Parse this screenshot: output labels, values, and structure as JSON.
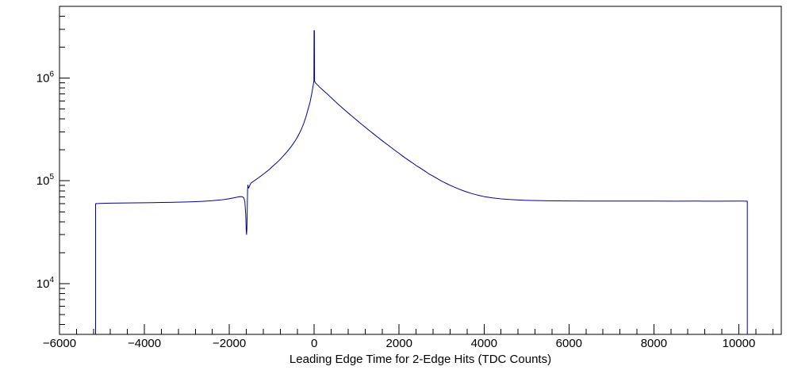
{
  "chart_data": {
    "type": "line",
    "title": "",
    "xlabel": "Leading Edge Time for 2-Edge Hits (TDC Counts)",
    "ylabel": "",
    "x_range": [
      -6000,
      11000
    ],
    "y_range": [
      3200,
      5000000
    ],
    "y_scale": "log10",
    "grid": "off",
    "legend": "none",
    "line_color": "#00009a",
    "frame_color": "#000000",
    "background_color": "#ffffff",
    "x_ticks": [
      {
        "value": -6000,
        "label": "−6000"
      },
      {
        "value": -4000,
        "label": "−4000"
      },
      {
        "value": -2000,
        "label": "−2000"
      },
      {
        "value": 0,
        "label": "0"
      },
      {
        "value": 2000,
        "label": "2000"
      },
      {
        "value": 4000,
        "label": "4000"
      },
      {
        "value": 6000,
        "label": "6000"
      },
      {
        "value": 8000,
        "label": "8000"
      },
      {
        "value": 10000,
        "label": "10000"
      }
    ],
    "x_minor_step": 400,
    "y_ticks": [
      {
        "value": 10000,
        "base": "10",
        "exp": "4"
      },
      {
        "value": 100000,
        "base": "10",
        "exp": "5"
      },
      {
        "value": 1000000,
        "base": "10",
        "exp": "6"
      }
    ],
    "points": [
      [
        -5150,
        3200
      ],
      [
        -5150,
        60000
      ],
      [
        -5000,
        60400
      ],
      [
        -4800,
        60600
      ],
      [
        -4600,
        60800
      ],
      [
        -4400,
        60900
      ],
      [
        -4200,
        61000
      ],
      [
        -4000,
        61200
      ],
      [
        -3800,
        61400
      ],
      [
        -3600,
        61600
      ],
      [
        -3400,
        61800
      ],
      [
        -3200,
        62000
      ],
      [
        -3000,
        62300
      ],
      [
        -2800,
        62700
      ],
      [
        -2600,
        63300
      ],
      [
        -2400,
        64100
      ],
      [
        -2200,
        65200
      ],
      [
        -2100,
        66000
      ],
      [
        -2000,
        67000
      ],
      [
        -1900,
        68200
      ],
      [
        -1800,
        69600
      ],
      [
        -1750,
        70200
      ],
      [
        -1700,
        70100
      ],
      [
        -1660,
        68500
      ],
      [
        -1635,
        63000
      ],
      [
        -1615,
        48000
      ],
      [
        -1602,
        33000
      ],
      [
        -1594,
        30000
      ],
      [
        -1586,
        34000
      ],
      [
        -1578,
        52000
      ],
      [
        -1570,
        83000
      ],
      [
        -1562,
        91000
      ],
      [
        -1554,
        87000
      ],
      [
        -1545,
        85000
      ],
      [
        -1530,
        88000
      ],
      [
        -1510,
        92000
      ],
      [
        -1490,
        95000
      ],
      [
        -1450,
        98000
      ],
      [
        -1400,
        101000
      ],
      [
        -1350,
        104500
      ],
      [
        -1300,
        108000
      ],
      [
        -1250,
        112000
      ],
      [
        -1200,
        116000
      ],
      [
        -1150,
        120500
      ],
      [
        -1100,
        125000
      ],
      [
        -1050,
        130000
      ],
      [
        -1000,
        136000
      ],
      [
        -950,
        142000
      ],
      [
        -900,
        148000
      ],
      [
        -850,
        155000
      ],
      [
        -800,
        162000
      ],
      [
        -750,
        171000
      ],
      [
        -700,
        180000
      ],
      [
        -650,
        190000
      ],
      [
        -600,
        201000
      ],
      [
        -550,
        214000
      ],
      [
        -500,
        228000
      ],
      [
        -450,
        245000
      ],
      [
        -400,
        265000
      ],
      [
        -350,
        290000
      ],
      [
        -300,
        320000
      ],
      [
        -250,
        360000
      ],
      [
        -200,
        415000
      ],
      [
        -150,
        490000
      ],
      [
        -100,
        580000
      ],
      [
        -60,
        700000
      ],
      [
        -30,
        830000
      ],
      [
        -15,
        900000
      ],
      [
        -8,
        940000
      ],
      [
        -4,
        2900000
      ],
      [
        4,
        2900000
      ],
      [
        8,
        930000
      ],
      [
        30,
        900000
      ],
      [
        60,
        870000
      ],
      [
        100,
        840000
      ],
      [
        150,
        800000
      ],
      [
        200,
        768000
      ],
      [
        250,
        735000
      ],
      [
        300,
        705000
      ],
      [
        350,
        674000
      ],
      [
        400,
        645000
      ],
      [
        450,
        616000
      ],
      [
        500,
        590000
      ],
      [
        550,
        564000
      ],
      [
        600,
        540000
      ],
      [
        650,
        518000
      ],
      [
        700,
        497000
      ],
      [
        750,
        477000
      ],
      [
        800,
        458000
      ],
      [
        850,
        440000
      ],
      [
        900,
        422000
      ],
      [
        950,
        406000
      ],
      [
        1000,
        390000
      ],
      [
        1100,
        360000
      ],
      [
        1200,
        333000
      ],
      [
        1300,
        308000
      ],
      [
        1400,
        286000
      ],
      [
        1500,
        265000
      ],
      [
        1600,
        246000
      ],
      [
        1700,
        229000
      ],
      [
        1800,
        213000
      ],
      [
        1900,
        198000
      ],
      [
        2000,
        185000
      ],
      [
        2100,
        172000
      ],
      [
        2200,
        161000
      ],
      [
        2300,
        151000
      ],
      [
        2400,
        141000
      ],
      [
        2500,
        133000
      ],
      [
        2600,
        125000
      ],
      [
        2700,
        117000
      ],
      [
        2800,
        111000
      ],
      [
        2900,
        105000
      ],
      [
        3000,
        99500
      ],
      [
        3100,
        94800
      ],
      [
        3200,
        90600
      ],
      [
        3300,
        86800
      ],
      [
        3400,
        83400
      ],
      [
        3500,
        80400
      ],
      [
        3600,
        77800
      ],
      [
        3700,
        75500
      ],
      [
        3800,
        73500
      ],
      [
        3900,
        71800
      ],
      [
        4000,
        70300
      ],
      [
        4200,
        68200
      ],
      [
        4400,
        66800
      ],
      [
        4600,
        65800
      ],
      [
        4800,
        65100
      ],
      [
        5000,
        64600
      ],
      [
        5250,
        64200
      ],
      [
        5500,
        64000
      ],
      [
        5750,
        63800
      ],
      [
        6000,
        63700
      ],
      [
        6500,
        63600
      ],
      [
        7000,
        63500
      ],
      [
        7500,
        63500
      ],
      [
        8000,
        63500
      ],
      [
        8500,
        63400
      ],
      [
        9000,
        63500
      ],
      [
        9500,
        63400
      ],
      [
        10000,
        63500
      ],
      [
        10200,
        63400
      ],
      [
        10200,
        3200
      ]
    ]
  }
}
